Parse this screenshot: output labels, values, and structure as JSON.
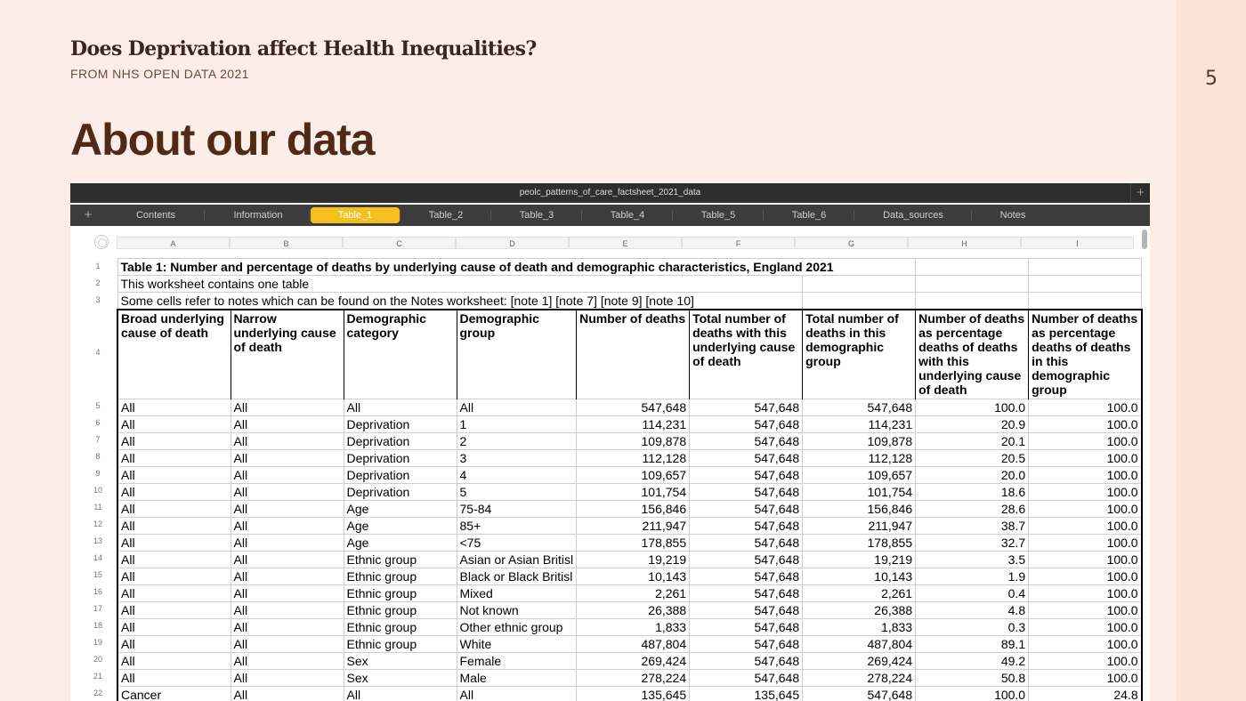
{
  "slide": {
    "title": "Does Deprivation affect Health Inequalities?",
    "subtitle": "FROM NHS OPEN DATA 2021",
    "heading": "About our data",
    "page_number": "5"
  },
  "window": {
    "filename": "peolc_patterns_of_care_factsheet_2021_data",
    "new_sheet": "+",
    "add_tab": "+",
    "active_tab": "Table_1",
    "tabs": [
      "Contents",
      "Information",
      "Table_1",
      "Table_2",
      "Table_3",
      "Table_4",
      "Table_5",
      "Table_6",
      "Data_sources",
      "Notes"
    ]
  },
  "sheet": {
    "columns": [
      "A",
      "B",
      "C",
      "D",
      "E",
      "F",
      "G",
      "H",
      "I"
    ],
    "row_numbers": [
      "1",
      "2",
      "3",
      "4",
      "5",
      "6",
      "7",
      "8",
      "9",
      "10",
      "11",
      "12",
      "13",
      "14",
      "15",
      "16",
      "17",
      "18",
      "19",
      "20",
      "21",
      "22"
    ],
    "title_lines": [
      "Table 1: Number and percentage of deaths by underlying cause of death and demographic characteristics, England 2021",
      "This worksheet contains one table",
      "Some cells refer to notes which can be found on the Notes worksheet: [note 1] [note 7] [note 9] [note 10]"
    ],
    "headers": [
      "Broad underlying cause of death",
      "Narrow underlying cause of death",
      "Demographic category",
      "Demographic group",
      "Number of deaths",
      "Total number of deaths with this underlying cause of death",
      "Total number of deaths in this demographic group",
      "Number of deaths as percentage deaths of deaths with this underlying cause of death",
      "Number of deaths as percentage deaths of deaths in this demographic group"
    ],
    "rows": [
      [
        "All",
        "All",
        "All",
        "All",
        "547,648",
        "547,648",
        "547,648",
        "100.0",
        "100.0"
      ],
      [
        "All",
        "All",
        "Deprivation",
        "1",
        "114,231",
        "547,648",
        "114,231",
        "20.9",
        "100.0"
      ],
      [
        "All",
        "All",
        "Deprivation",
        "2",
        "109,878",
        "547,648",
        "109,878",
        "20.1",
        "100.0"
      ],
      [
        "All",
        "All",
        "Deprivation",
        "3",
        "112,128",
        "547,648",
        "112,128",
        "20.5",
        "100.0"
      ],
      [
        "All",
        "All",
        "Deprivation",
        "4",
        "109,657",
        "547,648",
        "109,657",
        "20.0",
        "100.0"
      ],
      [
        "All",
        "All",
        "Deprivation",
        "5",
        "101,754",
        "547,648",
        "101,754",
        "18.6",
        "100.0"
      ],
      [
        "All",
        "All",
        "Age",
        "75-84",
        "156,846",
        "547,648",
        "156,846",
        "28.6",
        "100.0"
      ],
      [
        "All",
        "All",
        "Age",
        "85+",
        "211,947",
        "547,648",
        "211,947",
        "38.7",
        "100.0"
      ],
      [
        "All",
        "All",
        "Age",
        "<75",
        "178,855",
        "547,648",
        "178,855",
        "32.7",
        "100.0"
      ],
      [
        "All",
        "All",
        "Ethnic group",
        "Asian or Asian Britisl",
        "19,219",
        "547,648",
        "19,219",
        "3.5",
        "100.0"
      ],
      [
        "All",
        "All",
        "Ethnic group",
        "Black or Black Britisl",
        "10,143",
        "547,648",
        "10,143",
        "1.9",
        "100.0"
      ],
      [
        "All",
        "All",
        "Ethnic group",
        "Mixed",
        "2,261",
        "547,648",
        "2,261",
        "0.4",
        "100.0"
      ],
      [
        "All",
        "All",
        "Ethnic group",
        "Not known",
        "26,388",
        "547,648",
        "26,388",
        "4.8",
        "100.0"
      ],
      [
        "All",
        "All",
        "Ethnic group",
        "Other ethnic group",
        "1,833",
        "547,648",
        "1,833",
        "0.3",
        "100.0"
      ],
      [
        "All",
        "All",
        "Ethnic group",
        "White",
        "487,804",
        "547,648",
        "487,804",
        "89.1",
        "100.0"
      ],
      [
        "All",
        "All",
        "Sex",
        "Female",
        "269,424",
        "547,648",
        "269,424",
        "49.2",
        "100.0"
      ],
      [
        "All",
        "All",
        "Sex",
        "Male",
        "278,224",
        "547,648",
        "278,224",
        "50.8",
        "100.0"
      ],
      [
        "Cancer",
        "All",
        "All",
        "All",
        "135,645",
        "135,645",
        "547,648",
        "100.0",
        "24.8"
      ]
    ]
  }
}
